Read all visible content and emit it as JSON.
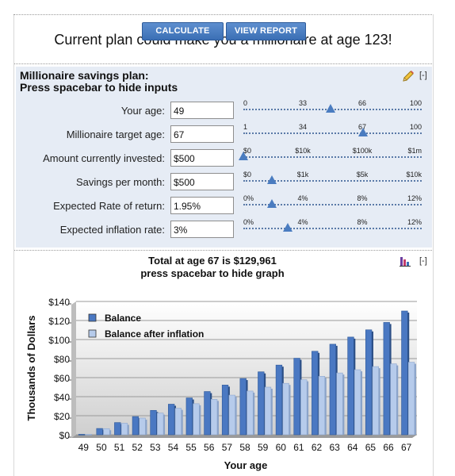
{
  "toolbar": {
    "calculate_label": "CALCULATE",
    "report_label": "VIEW REPORT"
  },
  "headline": "Current plan could make you a millionaire at age 123!",
  "panel": {
    "title_line1": "Millionaire savings plan:",
    "title_line2": "Press spacebar to hide inputs",
    "collapse_label": "[-]",
    "rows": [
      {
        "label": "Your age:",
        "value": "49",
        "ticks": [
          "0",
          "33",
          "66",
          "100"
        ],
        "level": 0.49
      },
      {
        "label": "Millionaire target age:",
        "value": "67",
        "ticks": [
          "1",
          "34",
          "67",
          "100"
        ],
        "level": 0.67
      },
      {
        "label": "Amount currently invested:",
        "value": "$500",
        "ticks": [
          "$0",
          "$10k",
          "$100k",
          "$1m"
        ],
        "level": 0.0
      },
      {
        "label": "Savings per month:",
        "value": "$500",
        "ticks": [
          "$0",
          "$1k",
          "$5k",
          "$10k"
        ],
        "level": 0.16
      },
      {
        "label": "Expected Rate of return:",
        "value": "1.95%",
        "ticks": [
          "0%",
          "4%",
          "8%",
          "12%"
        ],
        "level": 0.16
      },
      {
        "label": "Expected inflation rate:",
        "value": "3%",
        "ticks": [
          "0%",
          "4%",
          "8%",
          "12%"
        ],
        "level": 0.25
      }
    ]
  },
  "graph": {
    "title_line1": "Total at age 67 is $129,961",
    "title_line2": "press spacebar to hide graph",
    "collapse_label": "[-]"
  },
  "chart_data": {
    "type": "bar",
    "title": "Total at age 67 is $129,961",
    "xlabel": "Your age",
    "ylabel": "Thousands of Dollars",
    "categories": [
      "49",
      "50",
      "51",
      "52",
      "53",
      "54",
      "55",
      "56",
      "57",
      "58",
      "59",
      "60",
      "61",
      "62",
      "63",
      "64",
      "65",
      "66",
      "67"
    ],
    "series": [
      {
        "name": "Balance",
        "color": "#4a78c2",
        "values": [
          0.5,
          6.6,
          12.8,
          19.1,
          25.6,
          32.1,
          38.7,
          45.4,
          52.2,
          59.1,
          66.1,
          73.2,
          80.4,
          87.7,
          95.1,
          102.6,
          110.2,
          118.0,
          130.0
        ]
      },
      {
        "name": "Balance after inflation",
        "color": "#b6cbeb",
        "values": [
          0.5,
          6.4,
          12.1,
          17.5,
          22.8,
          27.8,
          32.6,
          37.2,
          41.6,
          45.9,
          50.0,
          54.0,
          57.8,
          61.4,
          64.9,
          68.3,
          71.6,
          74.5,
          76.2
        ]
      }
    ],
    "yticks": [
      "$0",
      "$20",
      "$40",
      "$60",
      "$80",
      "$100",
      "$120",
      "$140"
    ],
    "ylim": [
      0,
      140
    ],
    "legend_position": "top-left",
    "grid": true
  }
}
